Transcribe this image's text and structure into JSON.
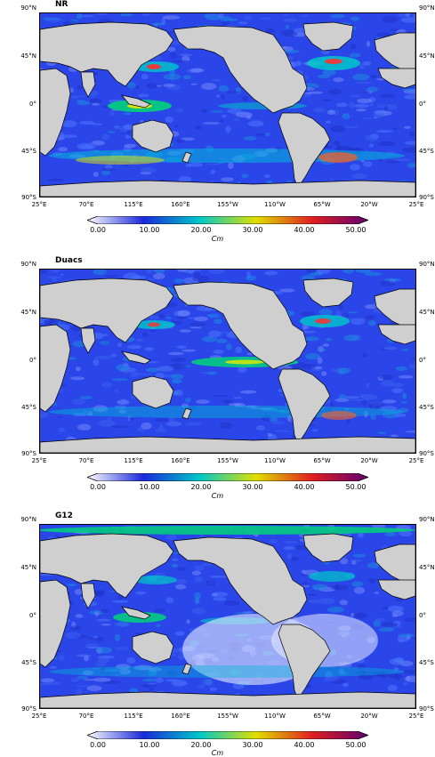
{
  "panels": [
    {
      "title": "NR"
    },
    {
      "title": "Duacs"
    },
    {
      "title": "G12"
    }
  ],
  "map_axes": {
    "lat_labels": [
      "90°N",
      "45°N",
      "0°",
      "45°S",
      "90°S"
    ],
    "lon_labels": [
      "25°E",
      "70°E",
      "115°E",
      "160°E",
      "155°W",
      "110°W",
      "65°W",
      "20°W",
      "25°E"
    ]
  },
  "colorbar": {
    "ticks": [
      "0.00",
      "10.00",
      "20.00",
      "30.00",
      "40.00",
      "50.00"
    ],
    "unit": "Cm",
    "min": 0,
    "max": 50,
    "colors": [
      "#ffffff",
      "#1a2ad9",
      "#00c8c8",
      "#e0e000",
      "#e02020",
      "#600070"
    ]
  },
  "colors": {
    "land": "#cfcfcf",
    "ocean_base": "#2a46e8",
    "coast": "#000000"
  }
}
